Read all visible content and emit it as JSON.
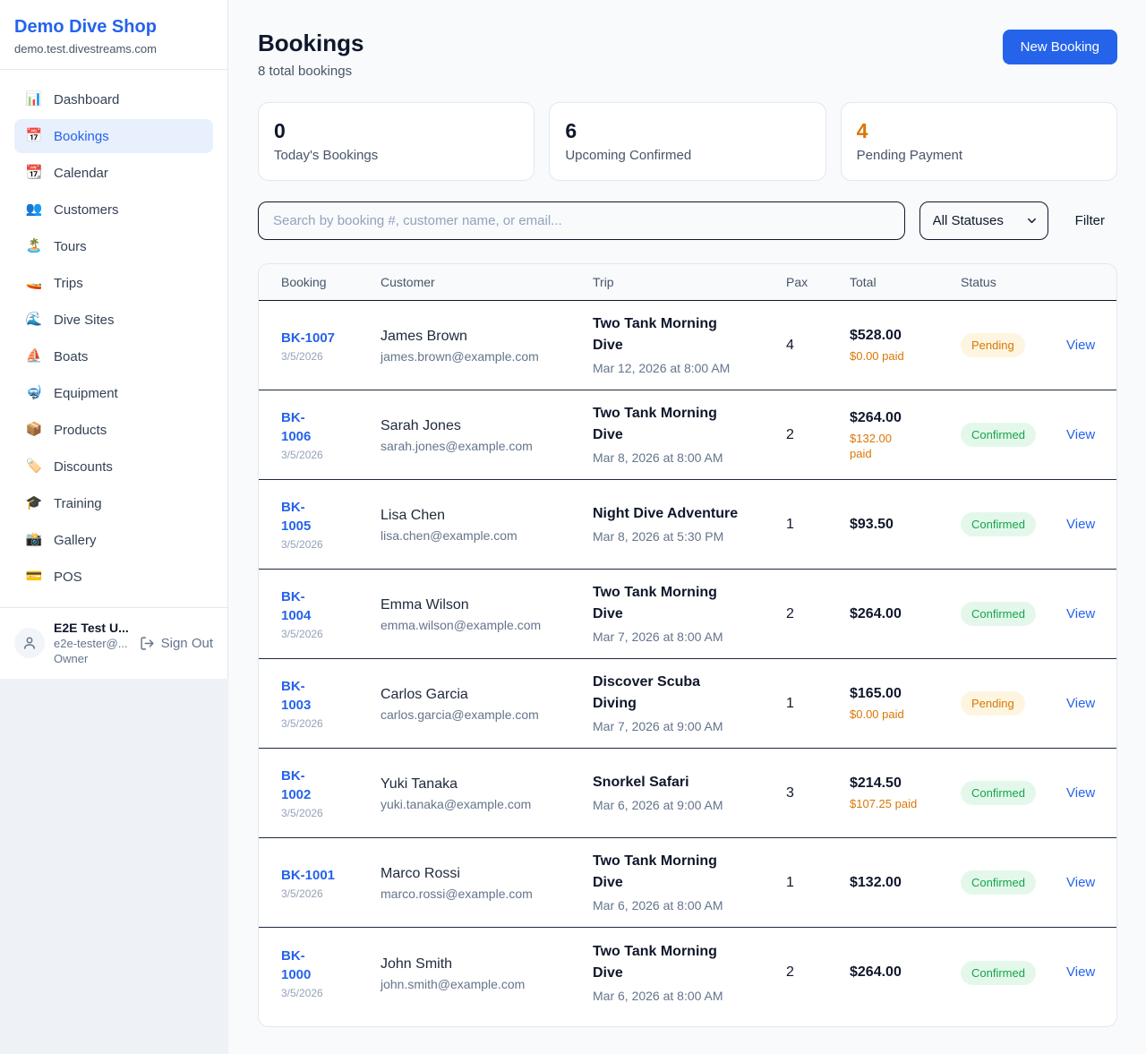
{
  "sidebar": {
    "brand": {
      "name": "Demo Dive Shop",
      "domain": "demo.test.divestreams.com"
    },
    "items": [
      {
        "label": "Dashboard",
        "icon": "bar-chart-icon",
        "glyph": "📊",
        "active": false
      },
      {
        "label": "Bookings",
        "icon": "calendar-date-icon",
        "glyph": "📅",
        "active": true
      },
      {
        "label": "Calendar",
        "icon": "calendar-icon",
        "glyph": "📆",
        "active": false
      },
      {
        "label": "Customers",
        "icon": "people-icon",
        "glyph": "👥",
        "active": false
      },
      {
        "label": "Tours",
        "icon": "island-icon",
        "glyph": "🏝️",
        "active": false
      },
      {
        "label": "Trips",
        "icon": "speedboat-icon",
        "glyph": "🚤",
        "active": false
      },
      {
        "label": "Dive Sites",
        "icon": "wave-icon",
        "glyph": "🌊",
        "active": false
      },
      {
        "label": "Boats",
        "icon": "sailboat-icon",
        "glyph": "⛵",
        "active": false
      },
      {
        "label": "Equipment",
        "icon": "diving-mask-icon",
        "glyph": "🤿",
        "active": false
      },
      {
        "label": "Products",
        "icon": "package-icon",
        "glyph": "📦",
        "active": false
      },
      {
        "label": "Discounts",
        "icon": "label-tag-icon",
        "glyph": "🏷️",
        "active": false
      },
      {
        "label": "Training",
        "icon": "graduation-cap-icon",
        "glyph": "🎓",
        "active": false
      },
      {
        "label": "Gallery",
        "icon": "camera-flash-icon",
        "glyph": "📸",
        "active": false
      },
      {
        "label": "POS",
        "icon": "credit-card-icon",
        "glyph": "💳",
        "active": false
      }
    ],
    "user": {
      "name": "E2E Test U...",
      "email": "e2e-tester@...",
      "role": "Owner",
      "sign_out_label": "Sign Out"
    }
  },
  "header": {
    "title": "Bookings",
    "subtitle": "8 total bookings",
    "new_booking_label": "New Booking"
  },
  "stats": [
    {
      "value": "0",
      "label": "Today's Bookings",
      "highlight": false
    },
    {
      "value": "6",
      "label": "Upcoming Confirmed",
      "highlight": false
    },
    {
      "value": "4",
      "label": "Pending Payment",
      "highlight": true
    }
  ],
  "controls": {
    "search_placeholder": "Search by booking #, customer name, or email...",
    "status_filter_selected": "All Statuses",
    "filter_label": "Filter"
  },
  "table": {
    "columns": [
      "Booking",
      "Customer",
      "Trip",
      "Pax",
      "Total",
      "Status",
      ""
    ],
    "rows": [
      {
        "booking_id": "BK-1007",
        "booking_date": "3/5/2026",
        "customer_name": "James Brown",
        "customer_email": "james.brown@example.com",
        "trip_name": "Two Tank Morning Dive",
        "trip_datetime": "Mar 12, 2026 at 8:00 AM",
        "pax": "4",
        "total": "$528.00",
        "paid": "$0.00 paid",
        "status": "Pending",
        "action": "View",
        "booking_wrap": false,
        "trip_wrap": true,
        "paid_wrap": false
      },
      {
        "booking_id": "BK-1006",
        "booking_date": "3/5/2026",
        "customer_name": "Sarah Jones",
        "customer_email": "sarah.jones@example.com",
        "trip_name": "Two Tank Morning Dive",
        "trip_datetime": "Mar 8, 2026 at 8:00 AM",
        "pax": "2",
        "total": "$264.00",
        "paid": "$132.00 paid",
        "status": "Confirmed",
        "action": "View",
        "booking_wrap": true,
        "trip_wrap": true,
        "paid_wrap": true
      },
      {
        "booking_id": "BK-1005",
        "booking_date": "3/5/2026",
        "customer_name": "Lisa Chen",
        "customer_email": "lisa.chen@example.com",
        "trip_name": "Night Dive Adventure",
        "trip_datetime": "Mar 8, 2026 at 5:30 PM",
        "pax": "1",
        "total": "$93.50",
        "paid": "",
        "status": "Confirmed",
        "action": "View",
        "booking_wrap": true,
        "trip_wrap": false,
        "paid_wrap": false
      },
      {
        "booking_id": "BK-1004",
        "booking_date": "3/5/2026",
        "customer_name": "Emma Wilson",
        "customer_email": "emma.wilson@example.com",
        "trip_name": "Two Tank Morning Dive",
        "trip_datetime": "Mar 7, 2026 at 8:00 AM",
        "pax": "2",
        "total": "$264.00",
        "paid": "",
        "status": "Confirmed",
        "action": "View",
        "booking_wrap": true,
        "trip_wrap": true,
        "paid_wrap": false
      },
      {
        "booking_id": "BK-1003",
        "booking_date": "3/5/2026",
        "customer_name": "Carlos Garcia",
        "customer_email": "carlos.garcia@example.com",
        "trip_name": "Discover Scuba Diving",
        "trip_datetime": "Mar 7, 2026 at 9:00 AM",
        "pax": "1",
        "total": "$165.00",
        "paid": "$0.00 paid",
        "status": "Pending",
        "action": "View",
        "booking_wrap": true,
        "trip_wrap": true,
        "paid_wrap": false
      },
      {
        "booking_id": "BK-1002",
        "booking_date": "3/5/2026",
        "customer_name": "Yuki Tanaka",
        "customer_email": "yuki.tanaka@example.com",
        "trip_name": "Snorkel Safari",
        "trip_datetime": "Mar 6, 2026 at 9:00 AM",
        "pax": "3",
        "total": "$214.50",
        "paid": "$107.25 paid",
        "status": "Confirmed",
        "action": "View",
        "booking_wrap": true,
        "trip_wrap": false,
        "paid_wrap": false
      },
      {
        "booking_id": "BK-1001",
        "booking_date": "3/5/2026",
        "customer_name": "Marco Rossi",
        "customer_email": "marco.rossi@example.com",
        "trip_name": "Two Tank Morning Dive",
        "trip_datetime": "Mar 6, 2026 at 8:00 AM",
        "pax": "1",
        "total": "$132.00",
        "paid": "",
        "status": "Confirmed",
        "action": "View",
        "booking_wrap": false,
        "trip_wrap": true,
        "paid_wrap": false
      },
      {
        "booking_id": "BK-1000",
        "booking_date": "3/5/2026",
        "customer_name": "John Smith",
        "customer_email": "john.smith@example.com",
        "trip_name": "Two Tank Morning Dive",
        "trip_datetime": "Mar 6, 2026 at 8:00 AM",
        "pax": "2",
        "total": "$264.00",
        "paid": "",
        "status": "Confirmed",
        "action": "View",
        "booking_wrap": true,
        "trip_wrap": true,
        "paid_wrap": false
      }
    ]
  },
  "colors": {
    "primary_blue": "#2563eb",
    "pending_text": "#d97706",
    "pending_bg": "#fdf5e0",
    "confirmed_text": "#16a34a",
    "confirmed_bg": "#e3f8eb",
    "paid_orange": "#d97706",
    "dark_text": "#0f172a"
  }
}
